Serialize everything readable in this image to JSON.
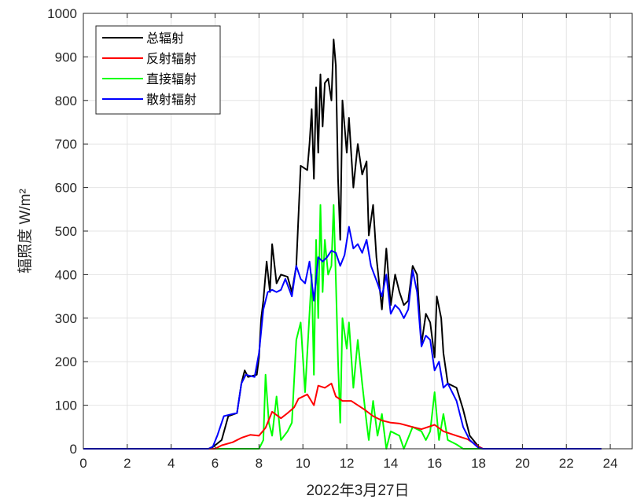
{
  "chart_data": {
    "type": "line",
    "title": "",
    "xlabel": "2022年3月27日",
    "ylabel": "辐照度 W/m²",
    "xlim": [
      0,
      25
    ],
    "ylim": [
      0,
      1000
    ],
    "x_ticks": [
      0,
      2,
      4,
      6,
      8,
      10,
      12,
      14,
      16,
      18,
      20,
      22,
      24
    ],
    "y_ticks": [
      0,
      100,
      200,
      300,
      400,
      500,
      600,
      700,
      800,
      900,
      1000
    ],
    "grid": true,
    "legend_position": "top-left",
    "series": [
      {
        "name": "总辐射",
        "color": "#000000",
        "points": [
          [
            0,
            0
          ],
          [
            5.8,
            0
          ],
          [
            6.0,
            8
          ],
          [
            6.3,
            20
          ],
          [
            6.6,
            75
          ],
          [
            7.0,
            82
          ],
          [
            7.2,
            150
          ],
          [
            7.35,
            180
          ],
          [
            7.5,
            165
          ],
          [
            7.9,
            170
          ],
          [
            8.0,
            210
          ],
          [
            8.1,
            300
          ],
          [
            8.2,
            340
          ],
          [
            8.35,
            430
          ],
          [
            8.5,
            360
          ],
          [
            8.6,
            470
          ],
          [
            8.8,
            380
          ],
          [
            9.0,
            400
          ],
          [
            9.3,
            395
          ],
          [
            9.5,
            360
          ],
          [
            9.7,
            420
          ],
          [
            9.9,
            650
          ],
          [
            10.2,
            640
          ],
          [
            10.3,
            700
          ],
          [
            10.4,
            780
          ],
          [
            10.5,
            620
          ],
          [
            10.6,
            830
          ],
          [
            10.7,
            680
          ],
          [
            10.8,
            860
          ],
          [
            10.9,
            740
          ],
          [
            11.0,
            840
          ],
          [
            11.15,
            850
          ],
          [
            11.3,
            800
          ],
          [
            11.4,
            940
          ],
          [
            11.5,
            880
          ],
          [
            11.6,
            620
          ],
          [
            11.7,
            480
          ],
          [
            11.8,
            800
          ],
          [
            12.0,
            680
          ],
          [
            12.1,
            760
          ],
          [
            12.3,
            600
          ],
          [
            12.5,
            700
          ],
          [
            12.7,
            630
          ],
          [
            12.9,
            660
          ],
          [
            13.0,
            490
          ],
          [
            13.2,
            560
          ],
          [
            13.35,
            440
          ],
          [
            13.6,
            320
          ],
          [
            13.8,
            460
          ],
          [
            14.0,
            330
          ],
          [
            14.2,
            400
          ],
          [
            14.4,
            360
          ],
          [
            14.6,
            330
          ],
          [
            14.8,
            340
          ],
          [
            15.0,
            420
          ],
          [
            15.2,
            400
          ],
          [
            15.4,
            240
          ],
          [
            15.6,
            310
          ],
          [
            15.8,
            290
          ],
          [
            16.0,
            210
          ],
          [
            16.1,
            350
          ],
          [
            16.3,
            300
          ],
          [
            16.4,
            220
          ],
          [
            16.6,
            150
          ],
          [
            17.0,
            140
          ],
          [
            17.3,
            90
          ],
          [
            17.6,
            30
          ],
          [
            18.0,
            5
          ],
          [
            18.2,
            0
          ],
          [
            23.6,
            0
          ]
        ]
      },
      {
        "name": "反射辐射",
        "color": "#ff0000",
        "points": [
          [
            0,
            0
          ],
          [
            6.0,
            0
          ],
          [
            6.3,
            8
          ],
          [
            6.8,
            15
          ],
          [
            7.2,
            25
          ],
          [
            7.6,
            32
          ],
          [
            8.0,
            30
          ],
          [
            8.3,
            48
          ],
          [
            8.6,
            85
          ],
          [
            9.0,
            70
          ],
          [
            9.3,
            82
          ],
          [
            9.6,
            95
          ],
          [
            9.8,
            115
          ],
          [
            10.2,
            125
          ],
          [
            10.5,
            100
          ],
          [
            10.7,
            145
          ],
          [
            11.0,
            140
          ],
          [
            11.3,
            150
          ],
          [
            11.5,
            120
          ],
          [
            11.8,
            110
          ],
          [
            12.2,
            110
          ],
          [
            12.5,
            100
          ],
          [
            12.8,
            90
          ],
          [
            13.2,
            75
          ],
          [
            13.6,
            65
          ],
          [
            14.0,
            60
          ],
          [
            14.4,
            58
          ],
          [
            15.0,
            50
          ],
          [
            15.4,
            45
          ],
          [
            16.0,
            55
          ],
          [
            16.4,
            40
          ],
          [
            17.0,
            30
          ],
          [
            17.5,
            22
          ],
          [
            18.0,
            5
          ],
          [
            18.2,
            0
          ],
          [
            23.6,
            0
          ]
        ]
      },
      {
        "name": "直接辐射",
        "color": "#00ff00",
        "points": [
          [
            0,
            0
          ],
          [
            8.0,
            0
          ],
          [
            8.2,
            20
          ],
          [
            8.3,
            170
          ],
          [
            8.45,
            60
          ],
          [
            8.6,
            30
          ],
          [
            8.8,
            120
          ],
          [
            9.0,
            20
          ],
          [
            9.3,
            40
          ],
          [
            9.5,
            60
          ],
          [
            9.7,
            250
          ],
          [
            9.9,
            290
          ],
          [
            10.1,
            130
          ],
          [
            10.4,
            400
          ],
          [
            10.5,
            170
          ],
          [
            10.6,
            480
          ],
          [
            10.7,
            300
          ],
          [
            10.8,
            560
          ],
          [
            10.9,
            360
          ],
          [
            11.0,
            480
          ],
          [
            11.15,
            400
          ],
          [
            11.3,
            420
          ],
          [
            11.4,
            560
          ],
          [
            11.5,
            390
          ],
          [
            11.6,
            200
          ],
          [
            11.7,
            60
          ],
          [
            11.8,
            300
          ],
          [
            12.0,
            230
          ],
          [
            12.1,
            290
          ],
          [
            12.3,
            140
          ],
          [
            12.5,
            250
          ],
          [
            12.7,
            150
          ],
          [
            12.9,
            60
          ],
          [
            13.0,
            20
          ],
          [
            13.2,
            110
          ],
          [
            13.4,
            30
          ],
          [
            13.6,
            80
          ],
          [
            13.8,
            0
          ],
          [
            14.0,
            40
          ],
          [
            14.4,
            30
          ],
          [
            14.6,
            0
          ],
          [
            15.0,
            50
          ],
          [
            15.4,
            40
          ],
          [
            15.6,
            20
          ],
          [
            15.8,
            40
          ],
          [
            16.0,
            130
          ],
          [
            16.2,
            20
          ],
          [
            16.4,
            80
          ],
          [
            16.6,
            20
          ],
          [
            17.0,
            10
          ],
          [
            17.3,
            0
          ],
          [
            23.6,
            0
          ]
        ]
      },
      {
        "name": "散射辐射",
        "color": "#0000ff",
        "points": [
          [
            0,
            0
          ],
          [
            5.7,
            0
          ],
          [
            5.9,
            5
          ],
          [
            6.1,
            30
          ],
          [
            6.4,
            75
          ],
          [
            6.8,
            80
          ],
          [
            7.0,
            82
          ],
          [
            7.2,
            150
          ],
          [
            7.4,
            170
          ],
          [
            7.8,
            165
          ],
          [
            8.0,
            220
          ],
          [
            8.2,
            320
          ],
          [
            8.4,
            360
          ],
          [
            8.6,
            365
          ],
          [
            8.8,
            360
          ],
          [
            9.0,
            365
          ],
          [
            9.2,
            390
          ],
          [
            9.5,
            350
          ],
          [
            9.7,
            420
          ],
          [
            9.9,
            390
          ],
          [
            10.1,
            380
          ],
          [
            10.3,
            430
          ],
          [
            10.5,
            340
          ],
          [
            10.7,
            440
          ],
          [
            10.9,
            430
          ],
          [
            11.1,
            440
          ],
          [
            11.3,
            455
          ],
          [
            11.5,
            450
          ],
          [
            11.7,
            420
          ],
          [
            11.9,
            445
          ],
          [
            12.1,
            510
          ],
          [
            12.3,
            460
          ],
          [
            12.5,
            470
          ],
          [
            12.7,
            450
          ],
          [
            12.9,
            480
          ],
          [
            13.1,
            420
          ],
          [
            13.4,
            380
          ],
          [
            13.6,
            350
          ],
          [
            13.8,
            400
          ],
          [
            14.0,
            310
          ],
          [
            14.2,
            330
          ],
          [
            14.4,
            320
          ],
          [
            14.6,
            300
          ],
          [
            14.8,
            320
          ],
          [
            15.0,
            410
          ],
          [
            15.2,
            360
          ],
          [
            15.4,
            235
          ],
          [
            15.6,
            260
          ],
          [
            15.8,
            250
          ],
          [
            16.0,
            180
          ],
          [
            16.2,
            200
          ],
          [
            16.4,
            140
          ],
          [
            16.6,
            150
          ],
          [
            17.0,
            110
          ],
          [
            17.3,
            50
          ],
          [
            17.6,
            20
          ],
          [
            18.0,
            2
          ],
          [
            18.2,
            0
          ],
          [
            23.6,
            0
          ]
        ]
      }
    ]
  }
}
